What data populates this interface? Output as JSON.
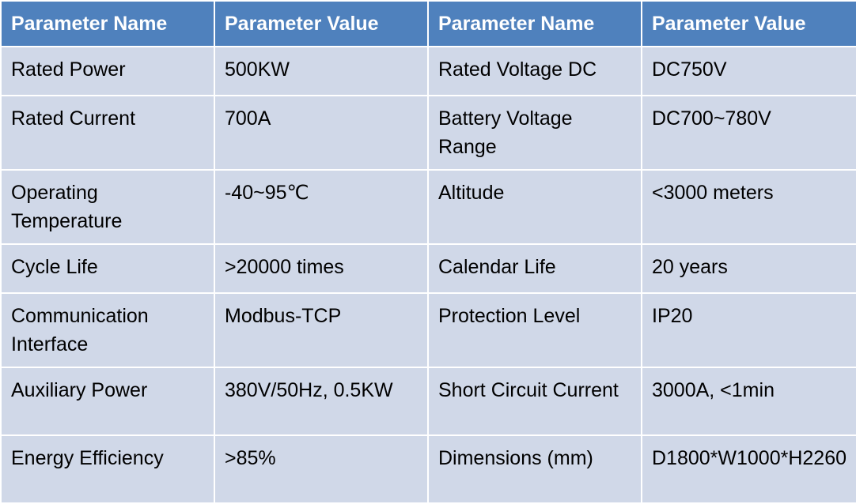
{
  "header": {
    "col1": "Parameter Name",
    "col2": "Parameter Value",
    "col3": "Parameter Name",
    "col4": "Parameter Value"
  },
  "rows": [
    {
      "name1": "Rated Power",
      "value1": "500KW",
      "name2": "Rated Voltage DC",
      "value2": "DC750V"
    },
    {
      "name1": "Rated Current",
      "value1": "700A",
      "name2": "Battery Voltage Range",
      "value2": "DC700~780V"
    },
    {
      "name1": "Operating Temperature",
      "value1": "-40~95℃",
      "name2": "Altitude",
      "value2": "<3000 meters"
    },
    {
      "name1": "Cycle Life",
      "value1": ">20000 times",
      "name2": "Calendar Life",
      "value2": "20 years"
    },
    {
      "name1": "Communication Interface",
      "value1": "Modbus-TCP",
      "name2": "Protection Level",
      "value2": "IP20"
    },
    {
      "name1": "Auxiliary Power",
      "value1": "380V/50Hz, 0.5KW",
      "name2": "Short Circuit Current",
      "value2": "3000A, <1min"
    },
    {
      "name1": "Energy Efficiency",
      "value1": ">85%",
      "name2": "Dimensions (mm)",
      "value2": "D1800*W1000*H2260"
    }
  ],
  "colors": {
    "header_bg": "#4f81bd",
    "cell_bg": "#d0d8e8",
    "header_text": "#ffffff"
  }
}
